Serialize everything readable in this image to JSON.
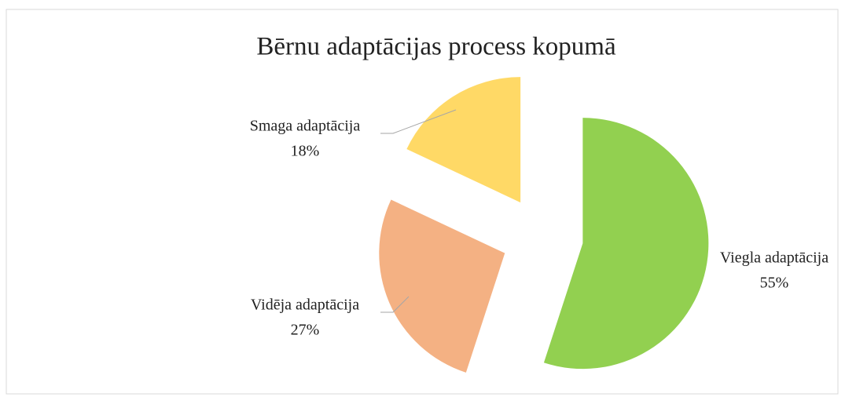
{
  "chart_data": {
    "type": "pie",
    "title": "Bērnu adaptācijas process kopumā",
    "categories": [
      "Viegla adaptācija",
      "Vidēja adaptācija",
      "Smaga adaptācija"
    ],
    "values": [
      55,
      27,
      18
    ],
    "value_labels": [
      "55%",
      "27%",
      "18%"
    ],
    "colors": [
      "#92d050",
      "#f4b183",
      "#ffd966"
    ],
    "exploded": true
  }
}
